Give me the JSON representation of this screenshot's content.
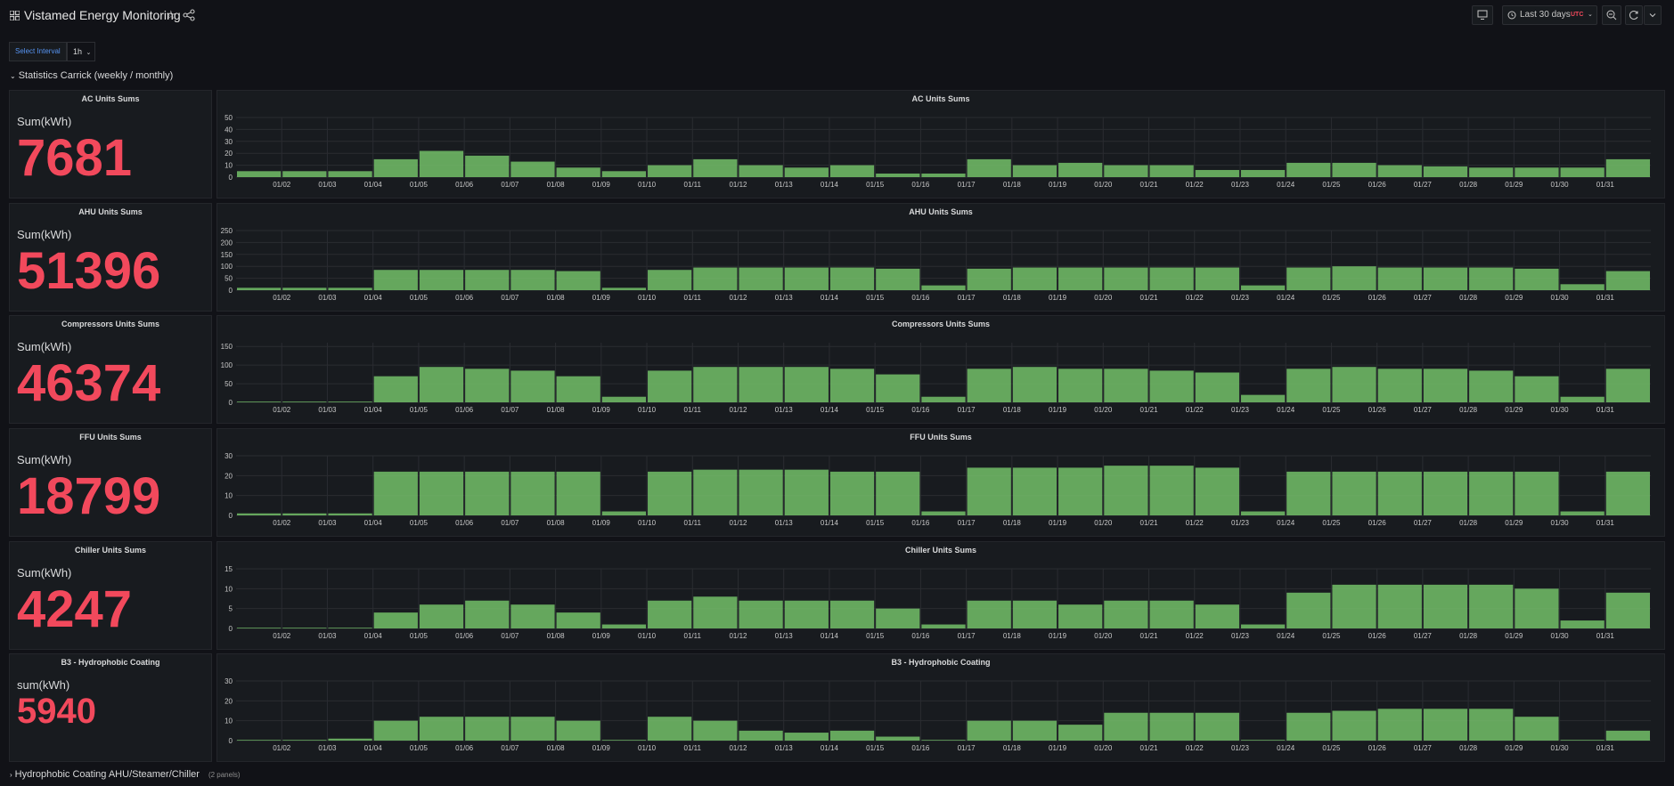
{
  "dashboard": {
    "title": "Vistamed Energy Monitoring",
    "icons": {
      "dashboard": "grid-icon",
      "star": "star-icon",
      "share": "share-icon"
    },
    "toolbar": {
      "tv_icon": "tv-icon",
      "time_range": "Last 30 days",
      "timezone": "UTC",
      "timezone_color": "#f2495c",
      "zoom_icon": "zoom-out-icon",
      "refresh_icon": "refresh-icon"
    }
  },
  "variables": {
    "interval_label": "Select Interval",
    "interval_value": "1h"
  },
  "rows": {
    "main": "Statistics Carrick (weekly / monthly)",
    "collapsed": {
      "title": "Hydrophobic Coating AHU/Steamer/Chiller",
      "count": "(2 panels)"
    }
  },
  "colors": {
    "bar": "#73bf69",
    "value": "#f2495c",
    "grid": "#2a2c31"
  },
  "x_ticks": [
    "01/02",
    "01/03",
    "01/04",
    "01/05",
    "01/06",
    "01/07",
    "01/08",
    "01/09",
    "01/10",
    "01/11",
    "01/12",
    "01/13",
    "01/14",
    "01/15",
    "01/16",
    "01/17",
    "01/18",
    "01/19",
    "01/20",
    "01/21",
    "01/22",
    "01/23",
    "01/24",
    "01/25",
    "01/26",
    "01/27",
    "01/28",
    "01/29",
    "01/30",
    "01/31"
  ],
  "panels": [
    {
      "stat_title": "AC Units Sums",
      "unit": "Sum(kWh)",
      "value": "7681"
    },
    {
      "stat_title": "AHU Units Sums",
      "unit": "Sum(kWh)",
      "value": "51396"
    },
    {
      "stat_title": "Compressors Units Sums",
      "unit": "Sum(kWh)",
      "value": "46374"
    },
    {
      "stat_title": "FFU Units Sums",
      "unit": "Sum(kWh)",
      "value": "18799"
    },
    {
      "stat_title": "Chiller Units Sums",
      "unit": "Sum(kWh)",
      "value": "4247"
    },
    {
      "stat_title": "B3 - Hydrophobic Coating",
      "unit": "sum(kWh)",
      "value": "5940"
    }
  ],
  "chart_data": [
    {
      "type": "bar",
      "title": "AC Units Sums",
      "y_ticks": [
        0,
        10,
        20,
        30,
        40,
        50
      ],
      "ylim": [
        0,
        50
      ],
      "x": [
        "01/01",
        "01/02",
        "01/03",
        "01/04",
        "01/05",
        "01/06",
        "01/07",
        "01/08",
        "01/09",
        "01/10",
        "01/11",
        "01/12",
        "01/13",
        "01/14",
        "01/15",
        "01/16",
        "01/17",
        "01/18",
        "01/19",
        "01/20",
        "01/21",
        "01/22",
        "01/23",
        "01/24",
        "01/25",
        "01/26",
        "01/27",
        "01/28",
        "01/29",
        "01/30",
        "01/31"
      ],
      "values": [
        5,
        5,
        5,
        15,
        22,
        18,
        13,
        8,
        5,
        10,
        15,
        10,
        8,
        10,
        3,
        3,
        15,
        10,
        12,
        10,
        10,
        6,
        6,
        12,
        12,
        10,
        9,
        8,
        8,
        8,
        15
      ]
    },
    {
      "type": "bar",
      "title": "AHU Units Sums",
      "y_ticks": [
        0,
        50,
        100,
        150,
        200,
        250
      ],
      "ylim": [
        0,
        250
      ],
      "x": [
        "01/01",
        "01/02",
        "01/03",
        "01/04",
        "01/05",
        "01/06",
        "01/07",
        "01/08",
        "01/09",
        "01/10",
        "01/11",
        "01/12",
        "01/13",
        "01/14",
        "01/15",
        "01/16",
        "01/17",
        "01/18",
        "01/19",
        "01/20",
        "01/21",
        "01/22",
        "01/23",
        "01/24",
        "01/25",
        "01/26",
        "01/27",
        "01/28",
        "01/29",
        "01/30",
        "01/31"
      ],
      "values": [
        10,
        10,
        10,
        85,
        85,
        85,
        85,
        80,
        10,
        85,
        95,
        95,
        95,
        95,
        90,
        20,
        90,
        95,
        95,
        95,
        95,
        95,
        20,
        95,
        100,
        95,
        95,
        95,
        90,
        25,
        80
      ]
    },
    {
      "type": "bar",
      "title": "Compressors Units Sums",
      "y_ticks": [
        0,
        50,
        100,
        150
      ],
      "ylim": [
        0,
        160
      ],
      "x": [
        "01/01",
        "01/02",
        "01/03",
        "01/04",
        "01/05",
        "01/06",
        "01/07",
        "01/08",
        "01/09",
        "01/10",
        "01/11",
        "01/12",
        "01/13",
        "01/14",
        "01/15",
        "01/16",
        "01/17",
        "01/18",
        "01/19",
        "01/20",
        "01/21",
        "01/22",
        "01/23",
        "01/24",
        "01/25",
        "01/26",
        "01/27",
        "01/28",
        "01/29",
        "01/30",
        "01/31"
      ],
      "values": [
        2,
        2,
        2,
        70,
        95,
        90,
        85,
        70,
        15,
        85,
        95,
        95,
        95,
        90,
        75,
        15,
        90,
        95,
        90,
        90,
        85,
        80,
        20,
        90,
        95,
        90,
        90,
        85,
        70,
        15,
        90
      ]
    },
    {
      "type": "bar",
      "title": "FFU Units Sums",
      "y_ticks": [
        0,
        10,
        20,
        30
      ],
      "ylim": [
        0,
        30
      ],
      "x": [
        "01/01",
        "01/02",
        "01/03",
        "01/04",
        "01/05",
        "01/06",
        "01/07",
        "01/08",
        "01/09",
        "01/10",
        "01/11",
        "01/12",
        "01/13",
        "01/14",
        "01/15",
        "01/16",
        "01/17",
        "01/18",
        "01/19",
        "01/20",
        "01/21",
        "01/22",
        "01/23",
        "01/24",
        "01/25",
        "01/26",
        "01/27",
        "01/28",
        "01/29",
        "01/30",
        "01/31"
      ],
      "values": [
        1,
        1,
        1,
        22,
        22,
        22,
        22,
        22,
        2,
        22,
        23,
        23,
        23,
        22,
        22,
        2,
        24,
        24,
        24,
        25,
        25,
        24,
        2,
        22,
        22,
        22,
        22,
        22,
        22,
        2,
        22
      ]
    },
    {
      "type": "bar",
      "title": "Chiller Units Sums",
      "y_ticks": [
        0,
        5,
        10,
        15
      ],
      "ylim": [
        0,
        15
      ],
      "x": [
        "01/01",
        "01/02",
        "01/03",
        "01/04",
        "01/05",
        "01/06",
        "01/07",
        "01/08",
        "01/09",
        "01/10",
        "01/11",
        "01/12",
        "01/13",
        "01/14",
        "01/15",
        "01/16",
        "01/17",
        "01/18",
        "01/19",
        "01/20",
        "01/21",
        "01/22",
        "01/23",
        "01/24",
        "01/25",
        "01/26",
        "01/27",
        "01/28",
        "01/29",
        "01/30",
        "01/31"
      ],
      "values": [
        0,
        0,
        0,
        4,
        6,
        7,
        6,
        4,
        1,
        7,
        8,
        7,
        7,
        7,
        5,
        1,
        7,
        7,
        6,
        7,
        7,
        6,
        1,
        9,
        11,
        11,
        11,
        11,
        10,
        2,
        9
      ]
    },
    {
      "type": "bar",
      "title": "B3 - Hydrophobic Coating",
      "y_ticks": [
        0,
        10,
        20,
        30
      ],
      "ylim": [
        0,
        30
      ],
      "x": [
        "01/01",
        "01/02",
        "01/03",
        "01/04",
        "01/05",
        "01/06",
        "01/07",
        "01/08",
        "01/09",
        "01/10",
        "01/11",
        "01/12",
        "01/13",
        "01/14",
        "01/15",
        "01/16",
        "01/17",
        "01/18",
        "01/19",
        "01/20",
        "01/21",
        "01/22",
        "01/23",
        "01/24",
        "01/25",
        "01/26",
        "01/27",
        "01/28",
        "01/29",
        "01/30",
        "01/31"
      ],
      "values": [
        0,
        0,
        1,
        10,
        12,
        12,
        12,
        10,
        0,
        12,
        10,
        5,
        4,
        5,
        2,
        0,
        10,
        10,
        8,
        14,
        14,
        14,
        0,
        14,
        15,
        16,
        16,
        16,
        12,
        0,
        5
      ]
    }
  ]
}
